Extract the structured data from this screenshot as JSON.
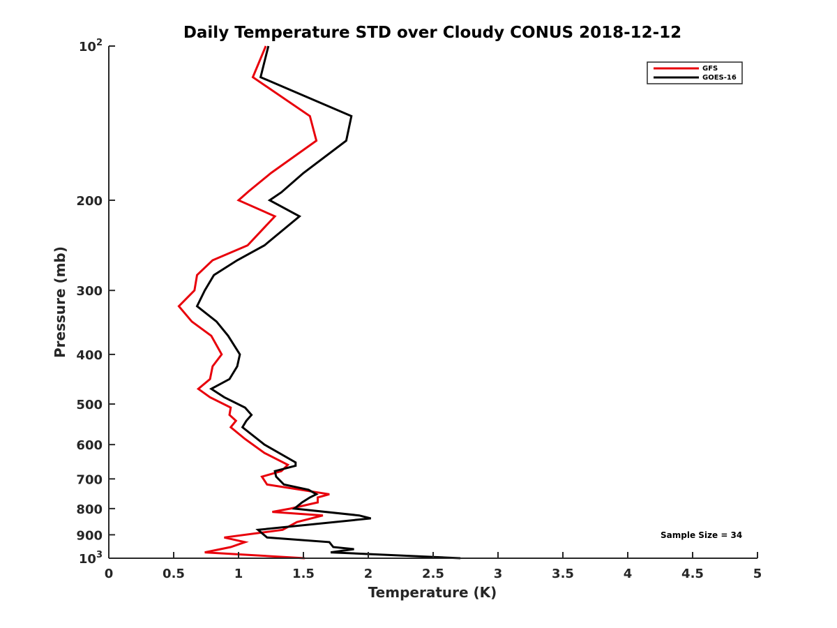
{
  "chart_data": {
    "type": "line",
    "title": "Daily Temperature STD over Cloudy CONUS 2018-12-12",
    "xlabel": "Temperature (K)",
    "ylabel": "Pressure (mb)",
    "xlim": [
      0,
      5
    ],
    "ylim": [
      100,
      1000
    ],
    "y_scale": "log",
    "y_reversed": true,
    "grid": false,
    "legend_position": "top-right",
    "x_ticks": [
      0,
      0.5,
      1,
      1.5,
      2,
      2.5,
      3,
      3.5,
      4,
      4.5,
      5
    ],
    "x_tick_labels": [
      "0",
      "0.5",
      "1",
      "1.5",
      "2",
      "2.5",
      "3",
      "3.5",
      "4",
      "4.5",
      "5"
    ],
    "y_ticks": [
      100,
      200,
      300,
      400,
      500,
      600,
      700,
      800,
      900,
      1000
    ],
    "y_tick_labels": [
      {
        "base": "10",
        "exp": "2"
      },
      {
        "base": "200",
        "exp": ""
      },
      {
        "base": "300",
        "exp": ""
      },
      {
        "base": "400",
        "exp": ""
      },
      {
        "base": "500",
        "exp": ""
      },
      {
        "base": "600",
        "exp": ""
      },
      {
        "base": "700",
        "exp": ""
      },
      {
        "base": "800",
        "exp": ""
      },
      {
        "base": "900",
        "exp": ""
      },
      {
        "base": "10",
        "exp": "3"
      }
    ],
    "annotation": "Sample Size = 34",
    "series": [
      {
        "name": "GFS",
        "color": "#e8000b",
        "points": [
          [
            1.21,
            100
          ],
          [
            1.11,
            115
          ],
          [
            1.55,
            137
          ],
          [
            1.6,
            153
          ],
          [
            1.25,
            177
          ],
          [
            1.08,
            192
          ],
          [
            1.0,
            200
          ],
          [
            1.28,
            215
          ],
          [
            1.07,
            245
          ],
          [
            0.8,
            262
          ],
          [
            0.68,
            280
          ],
          [
            0.66,
            300
          ],
          [
            0.54,
            322
          ],
          [
            0.64,
            345
          ],
          [
            0.79,
            368
          ],
          [
            0.87,
            400
          ],
          [
            0.8,
            422
          ],
          [
            0.78,
            447
          ],
          [
            0.69,
            467
          ],
          [
            0.78,
            485
          ],
          [
            0.94,
            508
          ],
          [
            0.93,
            525
          ],
          [
            0.98,
            539
          ],
          [
            0.94,
            555
          ],
          [
            1.05,
            585
          ],
          [
            1.2,
            623
          ],
          [
            1.38,
            657
          ],
          [
            1.33,
            676
          ],
          [
            1.18,
            693
          ],
          [
            1.22,
            718
          ],
          [
            1.7,
            750
          ],
          [
            1.61,
            761
          ],
          [
            1.61,
            778
          ],
          [
            1.4,
            800
          ],
          [
            1.26,
            812
          ],
          [
            1.65,
            825
          ],
          [
            1.45,
            850
          ],
          [
            1.34,
            880
          ],
          [
            0.89,
            911
          ],
          [
            1.05,
            930
          ],
          [
            0.94,
            951
          ],
          [
            0.74,
            974
          ],
          [
            1.51,
            1000
          ]
        ]
      },
      {
        "name": "GOES-16",
        "color": "#000000",
        "points": [
          [
            1.23,
            100
          ],
          [
            1.17,
            115
          ],
          [
            1.87,
            137
          ],
          [
            1.83,
            153
          ],
          [
            1.5,
            177
          ],
          [
            1.33,
            193
          ],
          [
            1.24,
            200
          ],
          [
            1.47,
            215
          ],
          [
            1.2,
            245
          ],
          [
            0.99,
            262
          ],
          [
            0.81,
            280
          ],
          [
            0.74,
            300
          ],
          [
            0.68,
            322
          ],
          [
            0.83,
            345
          ],
          [
            0.92,
            368
          ],
          [
            1.01,
            400
          ],
          [
            0.99,
            422
          ],
          [
            0.93,
            447
          ],
          [
            0.79,
            467
          ],
          [
            0.89,
            485
          ],
          [
            1.05,
            508
          ],
          [
            1.1,
            525
          ],
          [
            1.06,
            539
          ],
          [
            1.03,
            555
          ],
          [
            1.2,
            600
          ],
          [
            1.44,
            650
          ],
          [
            1.44,
            660
          ],
          [
            1.28,
            676
          ],
          [
            1.29,
            693
          ],
          [
            1.35,
            718
          ],
          [
            1.54,
            735
          ],
          [
            1.6,
            750
          ],
          [
            1.55,
            761
          ],
          [
            1.49,
            778
          ],
          [
            1.43,
            800
          ],
          [
            1.93,
            825
          ],
          [
            2.02,
            836
          ],
          [
            1.15,
            880
          ],
          [
            1.22,
            911
          ],
          [
            1.7,
            930
          ],
          [
            1.73,
            951
          ],
          [
            1.89,
            960
          ],
          [
            1.71,
            974
          ],
          [
            2.71,
            1000
          ]
        ]
      }
    ]
  }
}
